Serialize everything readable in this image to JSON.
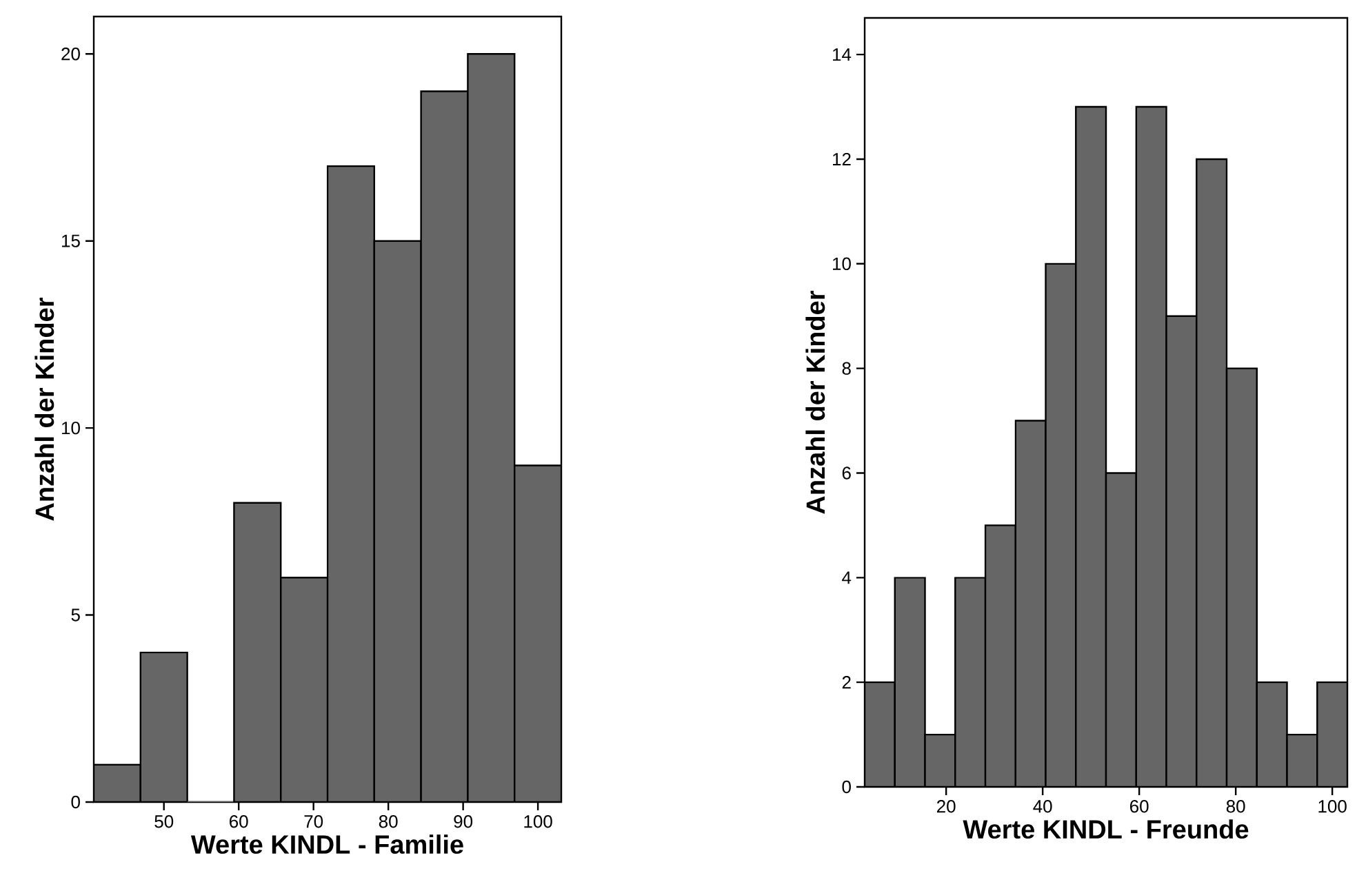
{
  "chart_data": [
    {
      "type": "histogram",
      "xlabel": "Werte KINDL - Familie",
      "ylabel": "Anzahl der Kinder",
      "color": "#666666",
      "bins": [
        40.625,
        46.875,
        53.125,
        59.375,
        65.625,
        71.875,
        78.125,
        84.375,
        90.625,
        96.875,
        103.125
      ],
      "values": [
        1,
        4,
        0,
        8,
        6,
        17,
        15,
        19,
        20,
        9
      ],
      "xlim": [
        40.625,
        103.125
      ],
      "xticks": [
        50,
        60,
        70,
        80,
        90,
        100
      ],
      "ylim": [
        0,
        21
      ],
      "yticks": [
        0,
        5,
        10,
        15,
        20
      ]
    },
    {
      "type": "histogram",
      "xlabel": "Werte KINDL - Freunde",
      "ylabel": "Anzahl der Kinder",
      "color": "#666666",
      "bins": [
        3.125,
        9.375,
        15.625,
        21.875,
        28.125,
        34.375,
        40.625,
        46.875,
        53.125,
        59.375,
        65.625,
        71.875,
        78.125,
        84.375,
        90.625,
        96.875,
        103.125
      ],
      "values": [
        2,
        4,
        1,
        4,
        5,
        7,
        10,
        13,
        6,
        13,
        9,
        12,
        8,
        2,
        1,
        2
      ],
      "xlim": [
        3.125,
        103.125
      ],
      "xticks": [
        20,
        40,
        60,
        80,
        100
      ],
      "ylim": [
        0,
        14.7
      ],
      "yticks": [
        0,
        2,
        4,
        6,
        8,
        10,
        12,
        14
      ]
    }
  ]
}
